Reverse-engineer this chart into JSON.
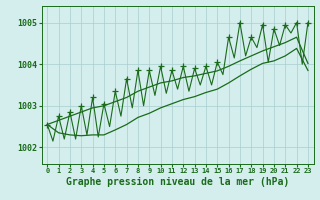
{
  "xlabel": "Graphe pression niveau de la mer (hPa)",
  "background_color": "#d4eeee",
  "line_color": "#1a6b1a",
  "ylim": [
    1001.6,
    1005.4
  ],
  "yticks": [
    1002,
    1003,
    1004,
    1005
  ],
  "x_labels": [
    "0",
    "1",
    "2",
    "3",
    "4",
    "5",
    "6",
    "7",
    "8",
    "9",
    "10",
    "11",
    "12",
    "13",
    "14",
    "15",
    "16",
    "17",
    "18",
    "19",
    "20",
    "21",
    "22",
    "23"
  ],
  "high_pts": [
    1002.55,
    1002.75,
    1002.85,
    1003.0,
    1003.2,
    1003.05,
    1003.35,
    1003.65,
    1003.85,
    1003.85,
    1003.95,
    1003.85,
    1003.95,
    1003.9,
    1003.95,
    1004.05,
    1004.65,
    1005.0,
    1004.65,
    1004.95,
    1004.85,
    1004.95,
    1005.0,
    1005.0
  ],
  "low_pts": [
    1002.55,
    1002.15,
    1002.2,
    1002.2,
    1002.3,
    1002.25,
    1002.5,
    1002.75,
    1002.95,
    1003.0,
    1003.25,
    1003.3,
    1003.4,
    1003.35,
    1003.5,
    1003.5,
    1003.75,
    1004.15,
    1004.2,
    1004.4,
    1004.05,
    1004.45,
    1004.75,
    1004.0
  ],
  "upper_env": [
    1002.55,
    1002.65,
    1002.75,
    1002.85,
    1002.95,
    1003.0,
    1003.1,
    1003.2,
    1003.35,
    1003.45,
    1003.55,
    1003.6,
    1003.68,
    1003.72,
    1003.78,
    1003.84,
    1003.95,
    1004.08,
    1004.2,
    1004.32,
    1004.42,
    1004.52,
    1004.65,
    1004.02
  ],
  "lower_env": [
    1002.55,
    1002.35,
    1002.3,
    1002.28,
    1002.3,
    1002.3,
    1002.42,
    1002.55,
    1002.72,
    1002.82,
    1002.95,
    1003.05,
    1003.15,
    1003.22,
    1003.32,
    1003.4,
    1003.55,
    1003.72,
    1003.88,
    1004.02,
    1004.08,
    1004.2,
    1004.38,
    1003.85
  ]
}
